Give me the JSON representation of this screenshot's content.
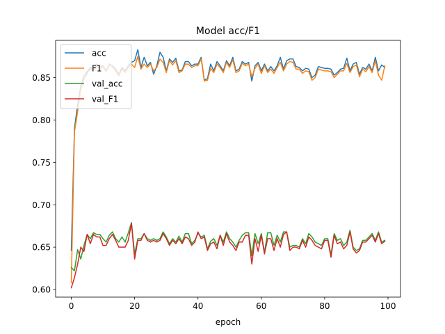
{
  "chart_data": {
    "type": "line",
    "title": "Model acc/F1",
    "xlabel": "epoch",
    "ylabel": "",
    "xlim": [
      -4.95,
      103.95
    ],
    "ylim": [
      0.591,
      0.894
    ],
    "xticks": [
      0,
      20,
      40,
      60,
      80,
      100
    ],
    "yticks": [
      0.6,
      0.65,
      0.7,
      0.75,
      0.8,
      0.85
    ],
    "ytick_labels": [
      "0.60",
      "0.65",
      "0.70",
      "0.75",
      "0.80",
      "0.85"
    ],
    "grid": false,
    "legend": "upper-left",
    "x": [
      0,
      1,
      2,
      3,
      4,
      5,
      6,
      7,
      8,
      9,
      10,
      11,
      12,
      13,
      14,
      15,
      16,
      17,
      18,
      19,
      20,
      21,
      22,
      23,
      24,
      25,
      26,
      27,
      28,
      29,
      30,
      31,
      32,
      33,
      34,
      35,
      36,
      37,
      38,
      39,
      40,
      41,
      42,
      43,
      44,
      45,
      46,
      47,
      48,
      49,
      50,
      51,
      52,
      53,
      54,
      55,
      56,
      57,
      58,
      59,
      60,
      61,
      62,
      63,
      64,
      65,
      66,
      67,
      68,
      69,
      70,
      71,
      72,
      73,
      74,
      75,
      76,
      77,
      78,
      79,
      80,
      81,
      82,
      83,
      84,
      85,
      86,
      87,
      88,
      89,
      90,
      91,
      92,
      93,
      94,
      95,
      96,
      97,
      98,
      99
    ],
    "series": [
      {
        "name": "acc",
        "color": "#1f77b4",
        "values": [
          0.646,
          0.79,
          0.818,
          0.84,
          0.852,
          0.857,
          0.862,
          0.86,
          0.866,
          0.862,
          0.864,
          0.858,
          0.866,
          0.864,
          0.86,
          0.854,
          0.862,
          0.858,
          0.864,
          0.868,
          0.87,
          0.883,
          0.862,
          0.874,
          0.864,
          0.868,
          0.854,
          0.864,
          0.88,
          0.874,
          0.858,
          0.872,
          0.868,
          0.873,
          0.858,
          0.859,
          0.869,
          0.869,
          0.864,
          0.866,
          0.866,
          0.874,
          0.847,
          0.849,
          0.866,
          0.858,
          0.869,
          0.864,
          0.858,
          0.87,
          0.864,
          0.874,
          0.858,
          0.86,
          0.869,
          0.866,
          0.868,
          0.846,
          0.864,
          0.868,
          0.858,
          0.866,
          0.858,
          0.863,
          0.858,
          0.864,
          0.874,
          0.86,
          0.87,
          0.872,
          0.872,
          0.863,
          0.862,
          0.858,
          0.861,
          0.86,
          0.85,
          0.853,
          0.863,
          0.862,
          0.861,
          0.861,
          0.86,
          0.853,
          0.856,
          0.86,
          0.861,
          0.873,
          0.858,
          0.866,
          0.868,
          0.854,
          0.862,
          0.86,
          0.866,
          0.858,
          0.874,
          0.858,
          0.865,
          0.862
        ]
      },
      {
        "name": "F1",
        "color": "#ff7f0e",
        "values": [
          0.608,
          0.786,
          0.81,
          0.836,
          0.848,
          0.855,
          0.86,
          0.858,
          0.864,
          0.86,
          0.863,
          0.857,
          0.865,
          0.863,
          0.858,
          0.852,
          0.86,
          0.856,
          0.862,
          0.866,
          0.862,
          0.875,
          0.86,
          0.866,
          0.862,
          0.866,
          0.858,
          0.862,
          0.872,
          0.868,
          0.856,
          0.87,
          0.865,
          0.87,
          0.856,
          0.858,
          0.866,
          0.866,
          0.862,
          0.864,
          0.864,
          0.872,
          0.846,
          0.847,
          0.861,
          0.856,
          0.866,
          0.862,
          0.856,
          0.868,
          0.862,
          0.871,
          0.856,
          0.858,
          0.867,
          0.864,
          0.866,
          0.851,
          0.861,
          0.866,
          0.855,
          0.864,
          0.856,
          0.86,
          0.855,
          0.862,
          0.868,
          0.858,
          0.866,
          0.869,
          0.868,
          0.86,
          0.86,
          0.855,
          0.858,
          0.857,
          0.847,
          0.85,
          0.86,
          0.859,
          0.858,
          0.858,
          0.857,
          0.85,
          0.854,
          0.858,
          0.858,
          0.867,
          0.856,
          0.863,
          0.865,
          0.851,
          0.86,
          0.857,
          0.863,
          0.856,
          0.87,
          0.853,
          0.847,
          0.864
        ]
      },
      {
        "name": "val_acc",
        "color": "#2ca02c",
        "values": [
          0.626,
          0.622,
          0.647,
          0.636,
          0.652,
          0.665,
          0.66,
          0.667,
          0.665,
          0.665,
          0.66,
          0.656,
          0.664,
          0.668,
          0.66,
          0.656,
          0.662,
          0.656,
          0.667,
          0.679,
          0.642,
          0.66,
          0.66,
          0.666,
          0.66,
          0.658,
          0.66,
          0.658,
          0.66,
          0.668,
          0.662,
          0.654,
          0.66,
          0.656,
          0.663,
          0.656,
          0.666,
          0.666,
          0.654,
          0.658,
          0.666,
          0.662,
          0.664,
          0.648,
          0.657,
          0.66,
          0.652,
          0.664,
          0.656,
          0.668,
          0.66,
          0.656,
          0.65,
          0.658,
          0.664,
          0.667,
          0.667,
          0.64,
          0.666,
          0.654,
          0.666,
          0.644,
          0.667,
          0.667,
          0.652,
          0.664,
          0.656,
          0.668,
          0.668,
          0.65,
          0.652,
          0.652,
          0.65,
          0.66,
          0.654,
          0.666,
          0.662,
          0.656,
          0.654,
          0.652,
          0.66,
          0.66,
          0.641,
          0.666,
          0.658,
          0.66,
          0.652,
          0.656,
          0.67,
          0.65,
          0.646,
          0.648,
          0.658,
          0.658,
          0.662,
          0.666,
          0.658,
          0.668,
          0.656,
          0.658
        ]
      },
      {
        "name": "val_F1",
        "color": "#d62728",
        "values": [
          0.602,
          0.614,
          0.63,
          0.65,
          0.645,
          0.665,
          0.654,
          0.665,
          0.662,
          0.662,
          0.652,
          0.652,
          0.66,
          0.665,
          0.658,
          0.65,
          0.65,
          0.65,
          0.658,
          0.678,
          0.636,
          0.658,
          0.658,
          0.666,
          0.658,
          0.656,
          0.658,
          0.656,
          0.658,
          0.666,
          0.66,
          0.652,
          0.658,
          0.654,
          0.66,
          0.654,
          0.662,
          0.66,
          0.652,
          0.656,
          0.668,
          0.66,
          0.662,
          0.646,
          0.654,
          0.656,
          0.648,
          0.664,
          0.652,
          0.666,
          0.656,
          0.652,
          0.646,
          0.656,
          0.656,
          0.664,
          0.664,
          0.63,
          0.66,
          0.645,
          0.664,
          0.642,
          0.66,
          0.66,
          0.646,
          0.66,
          0.65,
          0.665,
          0.668,
          0.646,
          0.65,
          0.65,
          0.648,
          0.658,
          0.65,
          0.662,
          0.658,
          0.652,
          0.65,
          0.648,
          0.658,
          0.658,
          0.638,
          0.664,
          0.654,
          0.656,
          0.648,
          0.652,
          0.668,
          0.648,
          0.643,
          0.646,
          0.656,
          0.656,
          0.66,
          0.664,
          0.656,
          0.666,
          0.654,
          0.657
        ]
      }
    ]
  }
}
